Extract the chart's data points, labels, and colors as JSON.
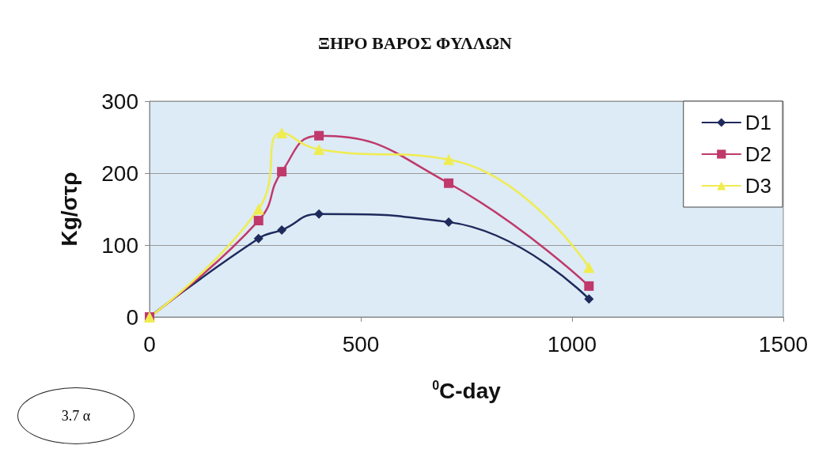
{
  "chart_data": {
    "type": "line",
    "title": "ΞΗΡΟ ΒΑΡΟΣ ΦΥΛΛΩΝ",
    "xlabel": "$^{0}$C-day",
    "ylabel": "Kg/στρ",
    "x": [
      0,
      258,
      313,
      401,
      708,
      1040
    ],
    "series": [
      {
        "name": "D1",
        "color": "#1f2a5c",
        "marker": "diamond",
        "values": [
          0,
          109,
          121,
          143,
          132,
          25
        ]
      },
      {
        "name": "D2",
        "color": "#c0396b",
        "marker": "square",
        "values": [
          0,
          134,
          202,
          252,
          186,
          43
        ]
      },
      {
        "name": "D3",
        "color": "#f0ec50",
        "marker": "triangle",
        "values": [
          0,
          150,
          256,
          233,
          219,
          69
        ]
      }
    ],
    "xlim": [
      0,
      1500
    ],
    "xticks": [
      0,
      500,
      1000,
      1500
    ],
    "ylim": [
      0,
      300
    ],
    "yticks": [
      0,
      100,
      200,
      300
    ],
    "grid": "y",
    "legend": "top right",
    "annotations": [
      "3.7 α"
    ]
  }
}
